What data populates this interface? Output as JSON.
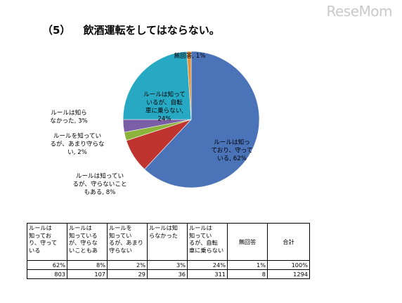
{
  "watermark": "ReseMom",
  "title": {
    "number": "（5）",
    "text": "飲酒運転をしてはならない。"
  },
  "chart_data": {
    "type": "pie",
    "title": "飲酒運転をしてはならない。",
    "slices": [
      {
        "label": "ルールは知っており、守っている",
        "value": 62,
        "color": "#4a73b8",
        "lines": [
          "ルールは知っ",
          "ており、守って",
          "いる, 62%"
        ]
      },
      {
        "label": "ルールは知っているが、守らないこともある",
        "value": 8,
        "color": "#c0342f",
        "lines": [
          "ルールは知ってい",
          "るが、守らないこと",
          "もある, 8%"
        ]
      },
      {
        "label": "ルールを知っているが、あまり守らない",
        "value": 2,
        "color": "#8cb43c",
        "lines": [
          "ルールを知ってい",
          "るが、あまり守らな",
          "い, 2%"
        ]
      },
      {
        "label": "ルールは知らなかった",
        "value": 3,
        "color": "#7a5fa6",
        "lines": [
          "ルールは知ら",
          "なかった, 3%"
        ]
      },
      {
        "label": "ルールは知っているが、自転車に乗らない",
        "value": 24,
        "color": "#27a9c4",
        "lines": [
          "ルールは知って",
          "いるが、自転",
          "車に乗らない,",
          "24%"
        ]
      },
      {
        "label": "無回答",
        "value": 1,
        "color": "#e7903a",
        "lines": [
          "無回答, 1%"
        ]
      }
    ],
    "legend": "none"
  },
  "table": {
    "headers": [
      [
        "ルールは",
        "知ってお",
        "り、守って",
        "いる"
      ],
      [
        "ルールは",
        "知っている",
        "が、守らな",
        "いこともあ"
      ],
      [
        "ルールを",
        "知ってい",
        "るが、あまり",
        "守らない"
      ],
      [
        "ルールは知",
        "らなかった"
      ],
      [
        "ルールは",
        "知ってい",
        "るが、自転",
        "車に乗らない"
      ],
      [
        "無回答"
      ],
      [
        "合計"
      ]
    ],
    "percent_row": [
      "62%",
      "8%",
      "2%",
      "3%",
      "24%",
      "1%",
      "100%"
    ],
    "count_row": [
      "803",
      "107",
      "29",
      "36",
      "311",
      "8",
      "1294"
    ]
  }
}
